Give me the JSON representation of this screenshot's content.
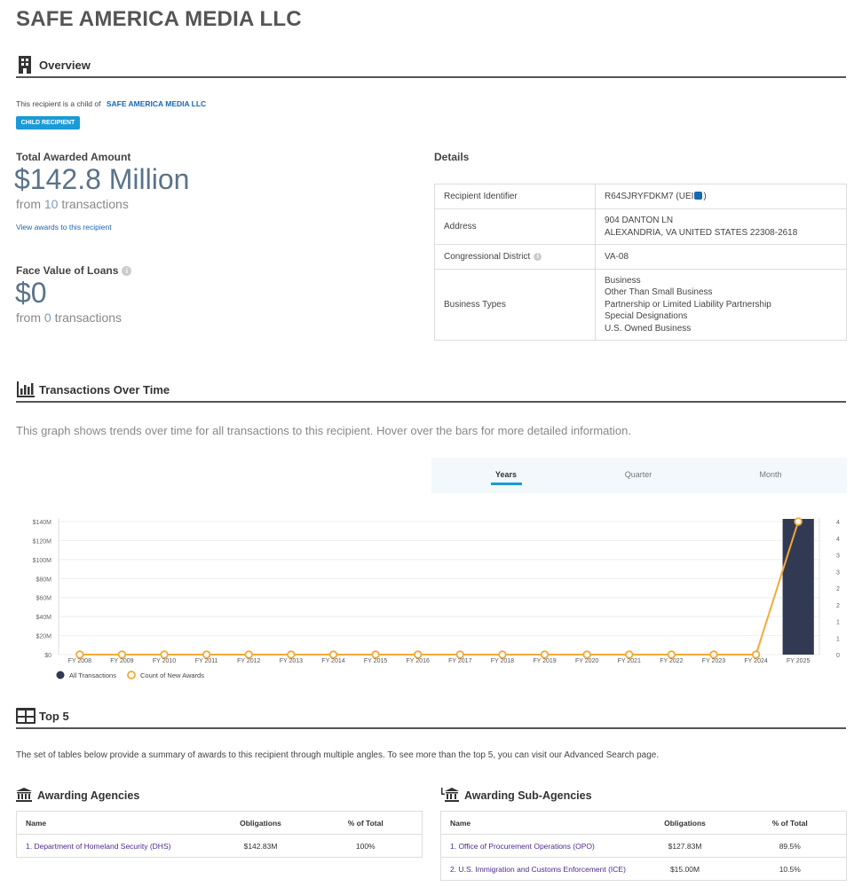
{
  "page": {
    "title": "SAFE AMERICA MEDIA LLC"
  },
  "overview": {
    "heading": "Overview",
    "icon": "building-icon",
    "child_text": "This recipient is a child of",
    "parent_link": "SAFE AMERICA MEDIA LLC",
    "badge": "CHILD RECIPIENT",
    "total_label": "Total Awarded Amount",
    "total_amount": "$142.8 Million",
    "total_from": "from",
    "total_count": "10",
    "total_suffix": "transactions",
    "view_link": "View awards to this recipient",
    "loans_label": "Face Value of Loans",
    "loans_amount": "$0",
    "loans_from": "from",
    "loans_count": "0",
    "loans_suffix": "transactions"
  },
  "details": {
    "heading": "Details",
    "identifier_label": "Recipient Identifier",
    "identifier_value": "R64SJRYFDKM7 (UEI",
    "identifier_close": ")",
    "address_label": "Address",
    "address_line1": "904 DANTON LN",
    "address_line2": "ALEXANDRIA, VA UNITED STATES 22308-2618",
    "district_label": "Congressional District",
    "district_value": "VA-08",
    "business_label": "Business Types",
    "business_types": [
      "Business",
      "Other Than Small Business",
      "Partnership or Limited Liability Partnership",
      "Special Designations",
      "U.S. Owned Business"
    ]
  },
  "transactions": {
    "heading": "Transactions Over Time",
    "description": "This graph shows trends over time for all transactions to this recipient. Hover over the bars for more detailed information.",
    "toggle": [
      "Years",
      "Quarter",
      "Month"
    ],
    "legend_all": "All Transactions",
    "legend_count": "Count of New Awards"
  },
  "chart_data": {
    "type": "bar",
    "categories": [
      "FY 2008",
      "FY 2009",
      "FY 2010",
      "FY 2011",
      "FY 2012",
      "FY 2013",
      "FY 2014",
      "FY 2015",
      "FY 2016",
      "FY 2017",
      "FY 2018",
      "FY 2019",
      "FY 2020",
      "FY 2021",
      "FY 2022",
      "FY 2023",
      "FY 2024",
      "FY 2025"
    ],
    "series": [
      {
        "name": "All Transactions",
        "type": "bar",
        "axis": "left",
        "color": "#323a53",
        "values": [
          0,
          0,
          0,
          0,
          0,
          0,
          0,
          0,
          0,
          0,
          0,
          0,
          0,
          0,
          0,
          0,
          0,
          142.8
        ]
      },
      {
        "name": "Count of New Awards",
        "type": "line",
        "axis": "right",
        "color": "#f2a93b",
        "values": [
          0,
          0,
          0,
          0,
          0,
          0,
          0,
          0,
          0,
          0,
          0,
          0,
          0,
          0,
          0,
          0,
          0,
          4
        ]
      }
    ],
    "y_left_ticks": [
      "$0",
      "$20M",
      "$40M",
      "$60M",
      "$80M",
      "$100M",
      "$120M",
      "$140M"
    ],
    "y_left_range": [
      0,
      140
    ],
    "y_right_ticks": [
      "0",
      "1",
      "1",
      "2",
      "2",
      "3",
      "3",
      "4",
      "4"
    ],
    "y_right_range": [
      0,
      4
    ],
    "legend_position": "bottom-left"
  },
  "top5": {
    "heading": "Top 5",
    "intro": "The set of tables below provide a summary of awards to this recipient through multiple angles. To see more than the top 5, you can visit our Advanced Search page.",
    "columns": [
      "Name",
      "Obligations",
      "% of Total"
    ],
    "agencies": {
      "heading": "Awarding Agencies",
      "rows": [
        {
          "name": "1. Department of Homeland Security (DHS)",
          "obligations": "$142.83M",
          "pct": "100%"
        }
      ]
    },
    "sub_agencies": {
      "heading": "Awarding Sub-Agencies",
      "rows": [
        {
          "name": "1. Office of Procurement Operations (OPO)",
          "obligations": "$127.83M",
          "pct": "89.5%"
        },
        {
          "name": "2. U.S. Immigration and Customs Enforcement (ICE)",
          "obligations": "$15.00M",
          "pct": "10.5%"
        }
      ]
    }
  }
}
